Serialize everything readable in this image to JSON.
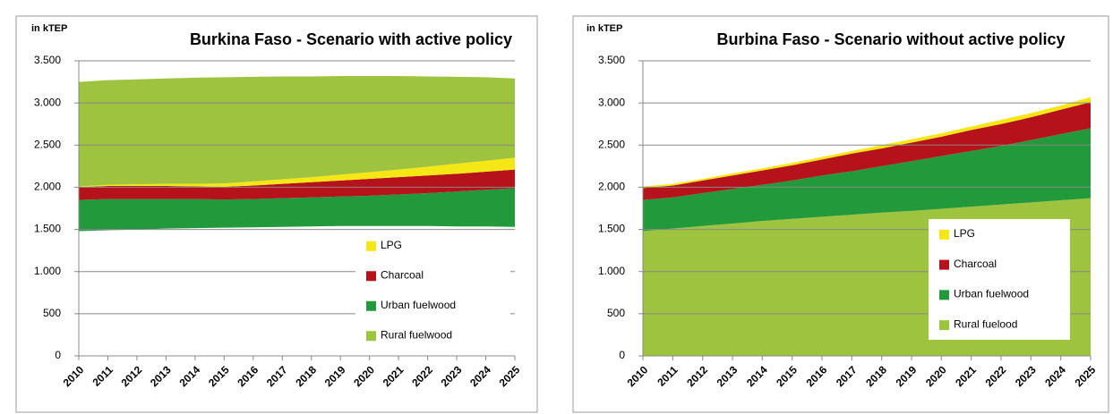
{
  "chart_data": [
    {
      "type": "stacked_area",
      "title": "Burkina Faso - Scenario with active policy",
      "y_label": "in kTEP",
      "categories": [
        "2010",
        "2011",
        "2012",
        "2013",
        "2014",
        "2015",
        "2016",
        "2017",
        "2018",
        "2019",
        "2020",
        "2021",
        "2022",
        "2023",
        "2024",
        "2025"
      ],
      "series": [
        {
          "color": "none",
          "values": [
            1480,
            1490,
            1500,
            1510,
            1515,
            1520,
            1525,
            1530,
            1535,
            1540,
            1540,
            1540,
            1540,
            1535,
            1535,
            1530
          ]
        },
        {
          "name": "Urban fuelwood",
          "color": "#229a3b",
          "values": [
            370,
            370,
            360,
            350,
            345,
            335,
            335,
            340,
            345,
            350,
            360,
            375,
            390,
            415,
            435,
            460
          ]
        },
        {
          "name": "Charcoal",
          "color": "#b5121b",
          "values": [
            150,
            155,
            155,
            155,
            150,
            150,
            160,
            170,
            180,
            190,
            200,
            205,
            210,
            210,
            215,
            220
          ]
        },
        {
          "name": "LPG",
          "color": "#f5e616",
          "values": [
            10,
            15,
            20,
            25,
            30,
            40,
            50,
            55,
            60,
            70,
            80,
            90,
            105,
            120,
            130,
            140
          ]
        },
        {
          "name": "Rural fuelwood",
          "color": "#9dc33f",
          "values": [
            1240,
            1240,
            1245,
            1250,
            1260,
            1260,
            1240,
            1220,
            1195,
            1170,
            1140,
            1110,
            1070,
            1030,
            990,
            940
          ]
        }
      ],
      "legend_order": [
        3,
        2,
        1,
        4
      ],
      "ylim": [
        0,
        3500
      ],
      "yticks": [
        0,
        500,
        {
          "value": 1000,
          "label": "1.000"
        },
        {
          "value": 1500,
          "label": "1.500"
        },
        {
          "value": 2000,
          "label": "2.000"
        },
        {
          "value": 2500,
          "label": "2.500"
        },
        {
          "value": 3000,
          "label": "3.000"
        },
        {
          "value": 3500,
          "label": "3.500"
        }
      ],
      "grid": true
    },
    {
      "type": "stacked_area",
      "title": "Burbina Faso - Scenario without active policy",
      "y_label": "in kTEP",
      "categories": [
        "2010",
        "2011",
        "2012",
        "2013",
        "2014",
        "2015",
        "2016",
        "2017",
        "2018",
        "2019",
        "2020",
        "2021",
        "2022",
        "2023",
        "2024",
        "2025"
      ],
      "series": [
        {
          "name": "Rural fuelood",
          "color": "#9dc33f",
          "values": [
            1480,
            1510,
            1540,
            1570,
            1600,
            1625,
            1650,
            1675,
            1700,
            1720,
            1745,
            1770,
            1795,
            1820,
            1845,
            1870
          ]
        },
        {
          "name": "Urban fuelwood",
          "color": "#229a3b",
          "values": [
            370,
            370,
            390,
            410,
            430,
            455,
            490,
            515,
            550,
            590,
            625,
            660,
            695,
            740,
            785,
            830
          ]
        },
        {
          "name": "Charcoal",
          "color": "#b5121b",
          "values": [
            140,
            140,
            150,
            160,
            170,
            180,
            190,
            210,
            210,
            220,
            230,
            250,
            260,
            270,
            290,
            310
          ]
        },
        {
          "name": "LPG",
          "color": "#f5e616",
          "values": [
            20,
            20,
            20,
            25,
            25,
            30,
            30,
            30,
            40,
            40,
            40,
            40,
            50,
            50,
            50,
            60
          ]
        }
      ],
      "legend_order": [
        3,
        2,
        1,
        0
      ],
      "ylim": [
        0,
        3500
      ],
      "yticks": [
        0,
        500,
        {
          "value": 1000,
          "label": "1.000"
        },
        {
          "value": 1500,
          "label": "1.500"
        },
        {
          "value": 2000,
          "label": "2.000"
        },
        {
          "value": 2500,
          "label": "2.500"
        },
        {
          "value": 3000,
          "label": "3.000"
        },
        {
          "value": 3500,
          "label": "3.500"
        }
      ],
      "grid": true
    }
  ]
}
